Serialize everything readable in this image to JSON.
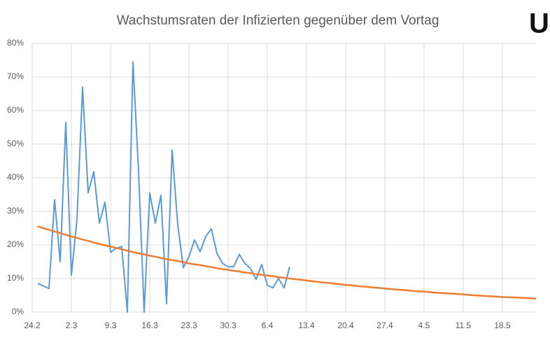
{
  "chart_data": {
    "type": "line",
    "title": "Wachstumsraten der Infizierten gegenüber dem Vortag",
    "annotation": "U",
    "grid": true,
    "categories": [
      "24.2",
      null,
      null,
      null,
      null,
      null,
      null,
      "2.3",
      null,
      null,
      null,
      null,
      null,
      null,
      "9.3",
      null,
      null,
      null,
      null,
      null,
      null,
      "16.3",
      null,
      null,
      null,
      null,
      null,
      null,
      "23.3",
      null,
      null,
      null,
      null,
      null,
      null,
      "30.3",
      null,
      null,
      null,
      null,
      null,
      null,
      "6.4",
      null,
      null,
      null,
      null,
      null,
      null,
      "13.4",
      null,
      null,
      null,
      null,
      null,
      null,
      "20.4",
      null,
      null,
      null,
      null,
      null,
      null,
      "27.4",
      null,
      null,
      null,
      null,
      null,
      null,
      "4.5",
      null,
      null,
      null,
      null,
      null,
      null,
      "11.5",
      null,
      null,
      null,
      null,
      null,
      null,
      "18.5",
      null,
      null,
      null,
      null,
      null
    ],
    "ylim": [
      0,
      80
    ],
    "yticks": [
      {
        "value": 0,
        "label": "0%"
      },
      {
        "value": 10,
        "label": "10%"
      },
      {
        "value": 20,
        "label": "20%"
      },
      {
        "value": 30,
        "label": "30%"
      },
      {
        "value": 40,
        "label": "40%"
      },
      {
        "value": 50,
        "label": "50%"
      },
      {
        "value": 60,
        "label": "60%"
      },
      {
        "value": 70,
        "label": "70%"
      },
      {
        "value": 80,
        "label": "80%"
      }
    ],
    "series": [
      {
        "color": "#5b9bd5",
        "values": [
          8.5,
          7.8,
          7,
          33.5,
          15,
          56.5,
          11,
          27.5,
          67,
          35.5,
          41.8,
          26.5,
          32.7,
          17.8,
          19,
          19.5,
          0,
          74.5,
          42,
          0,
          35.5,
          26.5,
          34.8,
          2.5,
          48.2,
          26,
          13.2,
          16.5,
          21.5,
          18,
          22.5,
          24.8,
          17.5,
          14.5,
          13.5,
          13.5,
          17.2,
          14.5,
          13,
          9.7,
          14.2,
          8,
          7.2,
          10,
          7.2,
          13.5,
          null,
          null,
          null,
          null,
          null,
          null,
          null,
          null,
          null,
          null,
          null,
          null,
          null,
          null,
          null,
          null,
          null,
          null,
          null,
          null,
          null,
          null,
          null,
          null,
          null,
          null,
          null,
          null,
          null,
          null,
          null,
          null,
          null,
          null,
          null,
          null,
          null,
          null,
          null,
          null,
          null,
          null,
          null,
          null
        ]
      },
      {
        "color": "#ed7d31",
        "values": [
          25.5,
          25,
          24.5,
          24,
          23.5,
          23,
          22.5,
          22.1,
          21.6,
          21.2,
          20.7,
          20.3,
          19.9,
          19.5,
          19.1,
          18.7,
          18.3,
          17.9,
          17.5,
          17.2,
          16.8,
          16.5,
          16.1,
          15.8,
          15.5,
          15.2,
          14.9,
          14.5,
          14.2,
          14,
          13.7,
          13.4,
          13.1,
          12.8,
          12.6,
          12.3,
          12.1,
          11.8,
          11.6,
          11.3,
          11.1,
          10.9,
          10.7,
          10.4,
          10.2,
          10,
          9.8,
          9.6,
          9.4,
          9.2,
          9,
          8.8,
          8.7,
          8.5,
          8.3,
          8.1,
          8,
          7.8,
          7.6,
          7.5,
          7.3,
          7.2,
          7,
          6.9,
          6.7,
          6.6,
          6.5,
          6.3,
          6.2,
          6.1,
          6,
          5.8,
          5.7,
          5.6,
          5.5,
          5.4,
          5.3,
          5.1,
          5,
          4.9,
          4.8,
          4.7,
          4.6,
          4.5,
          4.4,
          4.4,
          4.3,
          4.2,
          4.1,
          4
        ]
      }
    ]
  }
}
